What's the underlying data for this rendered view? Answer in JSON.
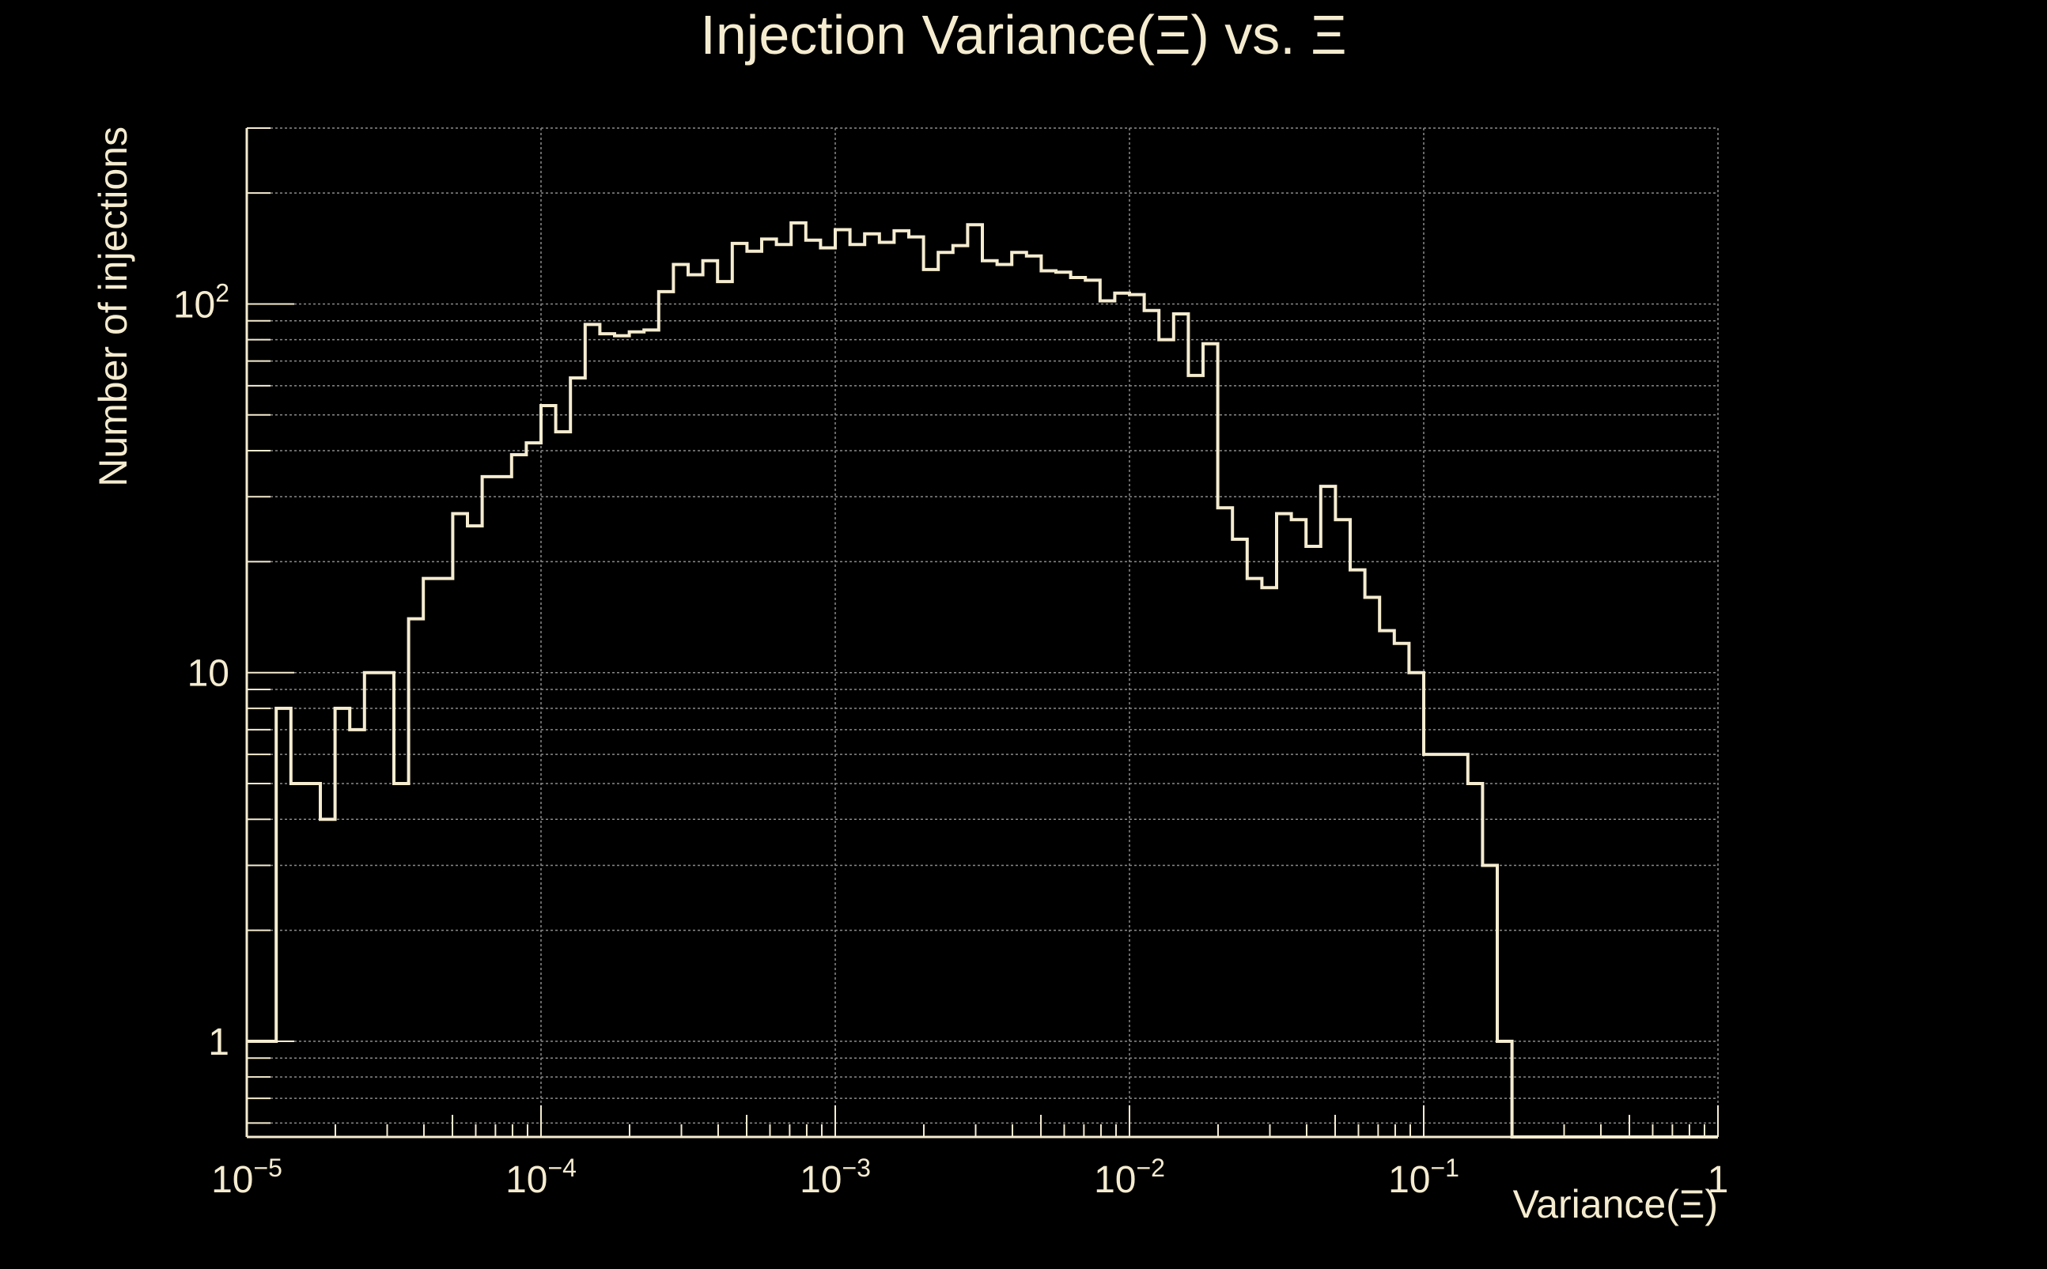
{
  "chart_data": {
    "type": "histogram",
    "title": "Injection Variance(Ξ) vs. Ξ",
    "xlabel": "Variance(Ξ)",
    "ylabel": "Number of injections",
    "x_scale": "log",
    "y_scale": "log",
    "xlim": [
      1e-05,
      1
    ],
    "ylim": [
      0.55,
      300
    ],
    "x_ticks": [
      {
        "value": 1e-05,
        "base": "10",
        "exp": "−5"
      },
      {
        "value": 0.0001,
        "base": "10",
        "exp": "−4"
      },
      {
        "value": 0.001,
        "base": "10",
        "exp": "−3"
      },
      {
        "value": 0.01,
        "base": "10",
        "exp": "−2"
      },
      {
        "value": 0.1,
        "base": "10",
        "exp": "−1"
      },
      {
        "value": 1,
        "base": "1",
        "exp": ""
      }
    ],
    "y_ticks": [
      {
        "value": 1,
        "base": "1",
        "exp": ""
      },
      {
        "value": 10,
        "base": "10",
        "exp": ""
      },
      {
        "value": 100,
        "base": "10",
        "exp": "2"
      }
    ],
    "grid": true,
    "bins_per_decade": 20,
    "first_bin_edge": 1e-05,
    "bin_counts": [
      1,
      1,
      8,
      5,
      5,
      4,
      8,
      7,
      10,
      10,
      5,
      14,
      18,
      18,
      27,
      25,
      34,
      34,
      39,
      42,
      53,
      45,
      63,
      88,
      83,
      82,
      84,
      85,
      108,
      128,
      120,
      131,
      115,
      146,
      139,
      150,
      145,
      166,
      149,
      142,
      159,
      145,
      155,
      147,
      158,
      152,
      124,
      138,
      144,
      164,
      131,
      128,
      138,
      135,
      123,
      122,
      118,
      116,
      102,
      107,
      106,
      96,
      80,
      94,
      64,
      78,
      28,
      23,
      18,
      17,
      27,
      26,
      22,
      32,
      26,
      19,
      16,
      13,
      12,
      10,
      6,
      6,
      6,
      5,
      3,
      1,
      0,
      0,
      0,
      0,
      0,
      0,
      0,
      0,
      0,
      0,
      0,
      0,
      0,
      0
    ],
    "colors": {
      "background": "#000000",
      "foreground": "#f5ecd0",
      "grid": "#8a8a8a"
    }
  }
}
